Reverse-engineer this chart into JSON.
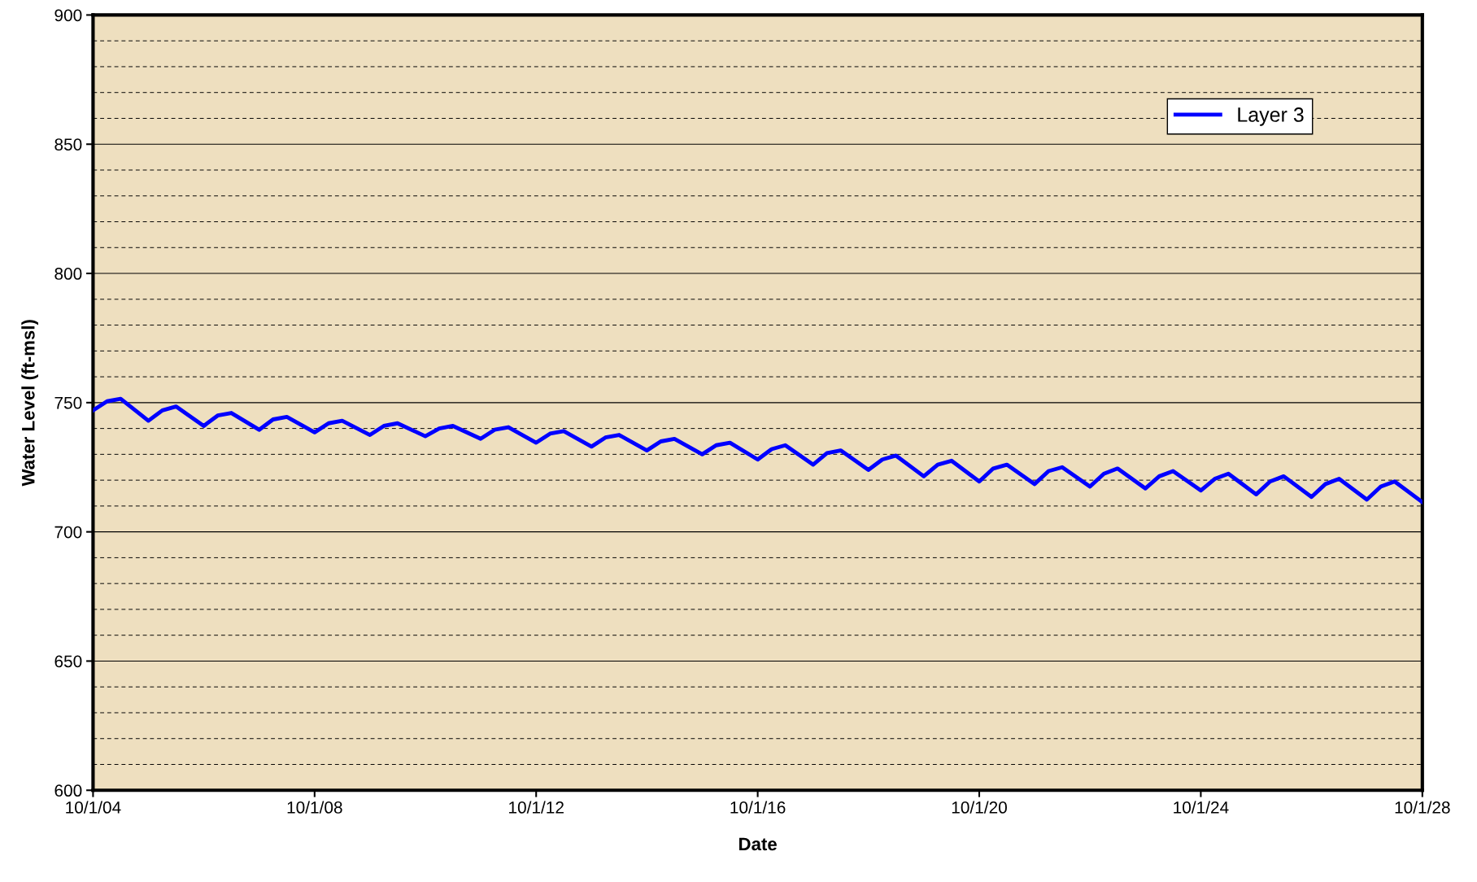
{
  "chart_data": {
    "type": "line",
    "xlabel": "Date",
    "ylabel": "Water Level (ft-msl)",
    "x": [
      "2004-10-01",
      "2005-01-01",
      "2005-04-01",
      "2005-10-01",
      "2006-01-01",
      "2006-04-01",
      "2006-10-01",
      "2007-01-01",
      "2007-04-01",
      "2007-10-01",
      "2008-01-01",
      "2008-04-01",
      "2008-10-01",
      "2009-01-01",
      "2009-04-01",
      "2009-10-01",
      "2010-01-01",
      "2010-04-01",
      "2010-10-01",
      "2011-01-01",
      "2011-04-01",
      "2011-10-01",
      "2012-01-01",
      "2012-04-01",
      "2012-10-01",
      "2013-01-01",
      "2013-04-01",
      "2013-10-01",
      "2014-01-01",
      "2014-04-01",
      "2014-10-01",
      "2015-01-01",
      "2015-04-01",
      "2015-10-01",
      "2016-01-01",
      "2016-04-01",
      "2016-10-01",
      "2017-01-01",
      "2017-04-01",
      "2017-10-01",
      "2018-01-01",
      "2018-04-01",
      "2018-10-01",
      "2019-01-01",
      "2019-04-01",
      "2019-10-01",
      "2020-01-01",
      "2020-04-01",
      "2020-10-01",
      "2021-01-01",
      "2021-04-01",
      "2021-10-01",
      "2022-01-01",
      "2022-04-01",
      "2022-10-01",
      "2023-01-01",
      "2023-04-01",
      "2023-10-01",
      "2024-01-01",
      "2024-04-01",
      "2024-10-01",
      "2025-01-01",
      "2025-04-01",
      "2025-10-01",
      "2026-01-01",
      "2026-04-01",
      "2026-10-01",
      "2027-01-01",
      "2027-04-01",
      "2027-10-01",
      "2028-01-01",
      "2028-04-01",
      "2028-10-01"
    ],
    "series": [
      {
        "name": "Layer 3",
        "color": "#0000ff",
        "values": [
          747,
          750.5,
          751.5,
          743,
          747,
          748.5,
          741,
          745,
          746,
          739.5,
          743.5,
          744.5,
          738.5,
          742,
          743,
          737.5,
          741,
          742,
          737,
          740,
          741,
          736,
          739.5,
          740.5,
          734.5,
          738,
          739,
          733,
          736.5,
          737.5,
          731.5,
          735,
          736,
          730,
          733.5,
          734.5,
          728,
          732,
          733.5,
          726,
          730.5,
          731.5,
          724,
          728,
          729.5,
          721.5,
          726,
          727.5,
          719.5,
          724.5,
          726,
          718.5,
          723.5,
          725,
          717.5,
          722.5,
          724.5,
          716.8,
          721.5,
          723.5,
          716,
          720.5,
          722.5,
          714.5,
          719.5,
          721.5,
          713.5,
          718.5,
          720.5,
          712.5,
          717.5,
          719.5,
          711.5
        ]
      }
    ],
    "xlim": [
      "2004-10-01",
      "2028-10-01"
    ],
    "xticks": [
      {
        "value": "2004-10-01",
        "label": "10/1/04"
      },
      {
        "value": "2008-10-01",
        "label": "10/1/08"
      },
      {
        "value": "2012-10-01",
        "label": "10/1/12"
      },
      {
        "value": "2016-10-01",
        "label": "10/1/16"
      },
      {
        "value": "2020-10-01",
        "label": "10/1/20"
      },
      {
        "value": "2024-10-01",
        "label": "10/1/24"
      },
      {
        "value": "2028-10-01",
        "label": "10/1/28"
      }
    ],
    "ylim": [
      600,
      900
    ],
    "yticks": [
      600,
      650,
      700,
      750,
      800,
      850,
      900
    ],
    "grid": "y",
    "legend": "top right",
    "marker": "none",
    "line_style": "solid"
  }
}
